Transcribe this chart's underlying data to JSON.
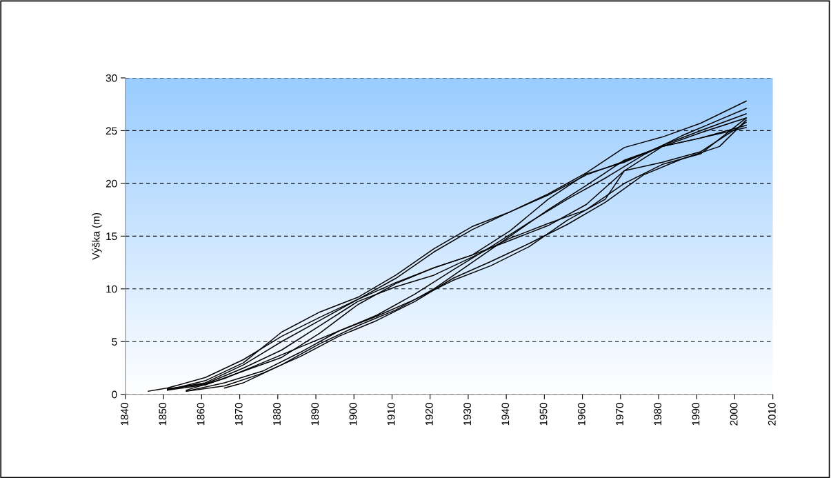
{
  "chart_data": {
    "type": "line",
    "ylabel": "Výška (m)",
    "xlim": [
      1840,
      2010
    ],
    "xticks": [
      1840,
      1850,
      1860,
      1870,
      1880,
      1890,
      1900,
      1910,
      1920,
      1930,
      1940,
      1950,
      1960,
      1970,
      1980,
      1990,
      2000,
      2010
    ],
    "ylim": [
      0,
      30
    ],
    "yticks": [
      0,
      5,
      10,
      15,
      20,
      25,
      30
    ],
    "grid": "y",
    "legend": false,
    "marker": "none",
    "line_style": "solid",
    "series": [
      {
        "color": "#000000",
        "x": [
          1846,
          1851,
          1861,
          1871,
          1881,
          1891,
          1901,
          1911,
          1921,
          1931,
          1941,
          1951,
          1961,
          1971,
          1981,
          1991,
          2003
        ],
        "values": [
          0.3,
          0.6,
          1.6,
          3.3,
          5.5,
          7.3,
          9.0,
          10.6,
          12.0,
          13.2,
          14.6,
          16.0,
          18.0,
          21.2,
          23.5,
          24.8,
          26.2
        ]
      },
      {
        "color": "#000000",
        "x": [
          1851,
          1861,
          1871,
          1881,
          1891,
          1901,
          1911,
          1921,
          1931,
          1941,
          1951,
          1961,
          1971,
          1981,
          1991,
          2003
        ],
        "values": [
          0.4,
          1.3,
          3.0,
          5.9,
          7.8,
          9.2,
          11.3,
          13.8,
          15.9,
          17.3,
          18.9,
          20.8,
          22.1,
          23.5,
          24.3,
          25.5
        ]
      },
      {
        "color": "#000000",
        "x": [
          1851,
          1861,
          1871,
          1881,
          1891,
          1901,
          1911,
          1921,
          1931,
          1941,
          1951,
          1961,
          1971,
          1981,
          1991,
          2003
        ],
        "values": [
          0.5,
          1.1,
          2.8,
          5.0,
          7.0,
          9.0,
          11.0,
          13.5,
          15.6,
          17.3,
          19.0,
          21.0,
          23.4,
          24.4,
          25.7,
          27.8
        ]
      },
      {
        "color": "#000000",
        "x": [
          1856,
          1866,
          1876,
          1886,
          1896,
          1906,
          1916,
          1926,
          1936,
          1946,
          1956,
          1966,
          1976,
          1986,
          2003
        ],
        "values": [
          0.3,
          1.1,
          2.2,
          4.0,
          6.0,
          7.5,
          9.5,
          11.8,
          14.0,
          16.3,
          18.5,
          20.5,
          22.7,
          24.5,
          27.1
        ]
      },
      {
        "color": "#000000",
        "x": [
          1856,
          1866,
          1876,
          1886,
          1896,
          1906,
          1916,
          1926,
          1936,
          1946,
          1956,
          1966,
          1976,
          1986,
          1996,
          2003
        ],
        "values": [
          0.3,
          0.8,
          2.0,
          3.6,
          5.5,
          7.0,
          8.8,
          11.0,
          12.6,
          14.3,
          16.1,
          18.2,
          20.8,
          22.3,
          23.5,
          26.0
        ]
      },
      {
        "color": "#000000",
        "x": [
          1866,
          1871,
          1881,
          1891,
          1901,
          1911,
          1921,
          1931,
          1941,
          1951,
          1961,
          1971,
          1981,
          1991,
          2003
        ],
        "values": [
          0.6,
          1.1,
          2.8,
          4.8,
          6.5,
          8.0,
          10.0,
          12.5,
          15.0,
          17.5,
          19.8,
          22.2,
          23.5,
          24.3,
          25.3
        ]
      },
      {
        "color": "#000000",
        "x": [
          1851,
          1861,
          1871,
          1881,
          1891,
          1901,
          1911,
          1921,
          1931,
          1941,
          1951,
          1961,
          1971,
          1981,
          1991,
          2003
        ],
        "values": [
          0.4,
          0.9,
          2.2,
          3.5,
          5.8,
          8.5,
          10.5,
          12.0,
          13.2,
          15.5,
          18.5,
          20.9,
          22.0,
          23.6,
          25.0,
          26.6
        ]
      },
      {
        "color": "#000000",
        "x": [
          1856,
          1866,
          1876,
          1886,
          1896,
          1906,
          1916,
          1926,
          1936,
          1946,
          1956,
          1966,
          1971,
          1981,
          1991,
          2003
        ],
        "values": [
          0.4,
          1.5,
          3.0,
          4.5,
          6.0,
          7.4,
          9.0,
          10.8,
          12.2,
          14.0,
          16.5,
          18.5,
          21.2,
          22.0,
          23.0,
          25.8
        ]
      },
      {
        "color": "#000000",
        "x": [
          1851,
          1861,
          1871,
          1881,
          1891,
          1901,
          1911,
          1921,
          1931,
          1941,
          1951,
          1961,
          1971,
          1981,
          1991,
          2003
        ],
        "values": [
          0.5,
          1.0,
          2.5,
          4.2,
          6.5,
          8.8,
          10.2,
          11.3,
          13.0,
          14.8,
          16.2,
          17.5,
          20.0,
          21.8,
          22.8,
          26.2
        ]
      }
    ]
  }
}
